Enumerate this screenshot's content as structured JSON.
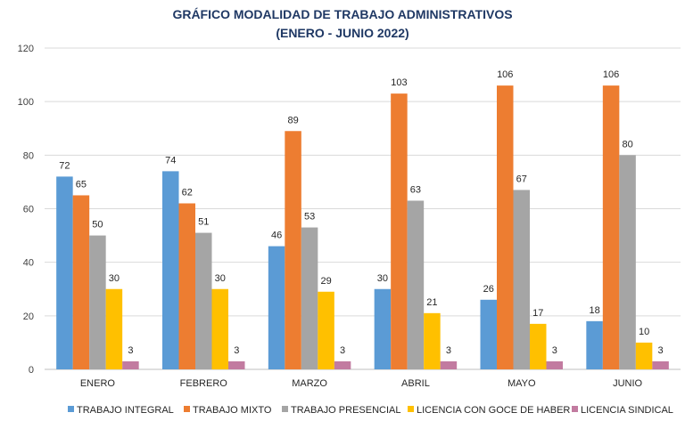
{
  "chart_data": {
    "type": "bar",
    "title": "GRÁFICO MODALIDAD DE TRABAJO ADMINISTRATIVOS",
    "subtitle": "(ENERO - JUNIO 2022)",
    "xlabel": "",
    "ylabel": "",
    "ylim": [
      0,
      120
    ],
    "yticks": [
      0,
      20,
      40,
      60,
      80,
      100,
      120
    ],
    "grid": true,
    "legend_position": "bottom",
    "categories": [
      "ENERO",
      "FEBRERO",
      "MARZO",
      "ABRIL",
      "MAYO",
      "JUNIO"
    ],
    "series": [
      {
        "name": "TRABAJO INTEGRAL",
        "color": "#5b9bd5",
        "values": [
          72,
          74,
          46,
          30,
          26,
          18
        ]
      },
      {
        "name": "TRABAJO MIXTO",
        "color": "#ed7d31",
        "values": [
          65,
          62,
          89,
          103,
          106,
          106
        ]
      },
      {
        "name": "TRABAJO PRESENCIAL",
        "color": "#a5a5a5",
        "values": [
          50,
          51,
          53,
          63,
          67,
          80
        ]
      },
      {
        "name": "LICENCIA CON GOCE DE HABER",
        "color": "#ffc000",
        "values": [
          30,
          30,
          29,
          21,
          17,
          10
        ]
      },
      {
        "name": "LICENCIA SINDICAL",
        "color": "#c27ba0",
        "values": [
          3,
          3,
          3,
          3,
          3,
          3
        ]
      }
    ]
  }
}
